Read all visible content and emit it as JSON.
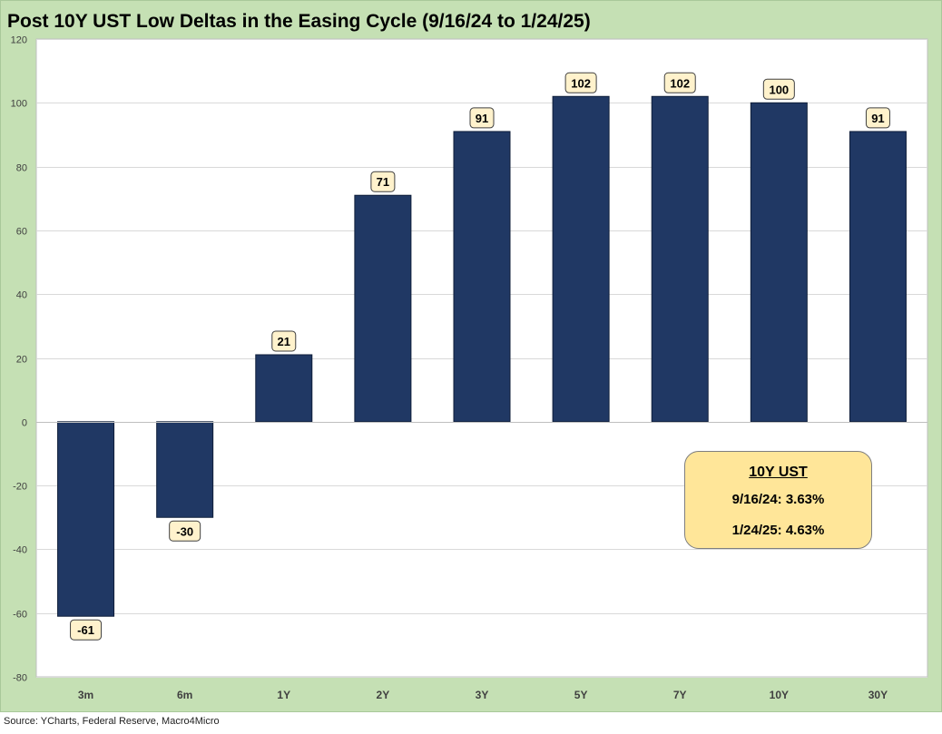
{
  "title": "Post 10Y UST Low Deltas in the Easing Cycle (9/16/24 to 1/24/25)",
  "source": "Source: YCharts, Federal Reserve, Macro4Micro",
  "info_box": {
    "heading": "10Y UST",
    "line1": "9/16/24: 3.63%",
    "line2": "1/24/25: 4.63%"
  },
  "colors": {
    "bar": "#203864",
    "frame": "#c5e0b4",
    "plot_bg": "#ffffff",
    "label_bg": "#fff2cc",
    "info_bg": "#ffe699"
  },
  "chart_data": {
    "type": "bar",
    "categories": [
      "3m",
      "6m",
      "1Y",
      "2Y",
      "3Y",
      "5Y",
      "7Y",
      "10Y",
      "30Y"
    ],
    "values": [
      -61,
      -30,
      21,
      71,
      91,
      102,
      102,
      100,
      91
    ],
    "data_labels": [
      "-61",
      "-30",
      "21",
      "71",
      "91",
      "102",
      "102",
      "100",
      "91"
    ],
    "ylim": [
      -80,
      120
    ],
    "yticks": [
      "120",
      "100",
      "80",
      "60",
      "40",
      "20",
      "0",
      "-20",
      "-40",
      "-60",
      "-80"
    ],
    "grid": true,
    "legend": "none"
  }
}
